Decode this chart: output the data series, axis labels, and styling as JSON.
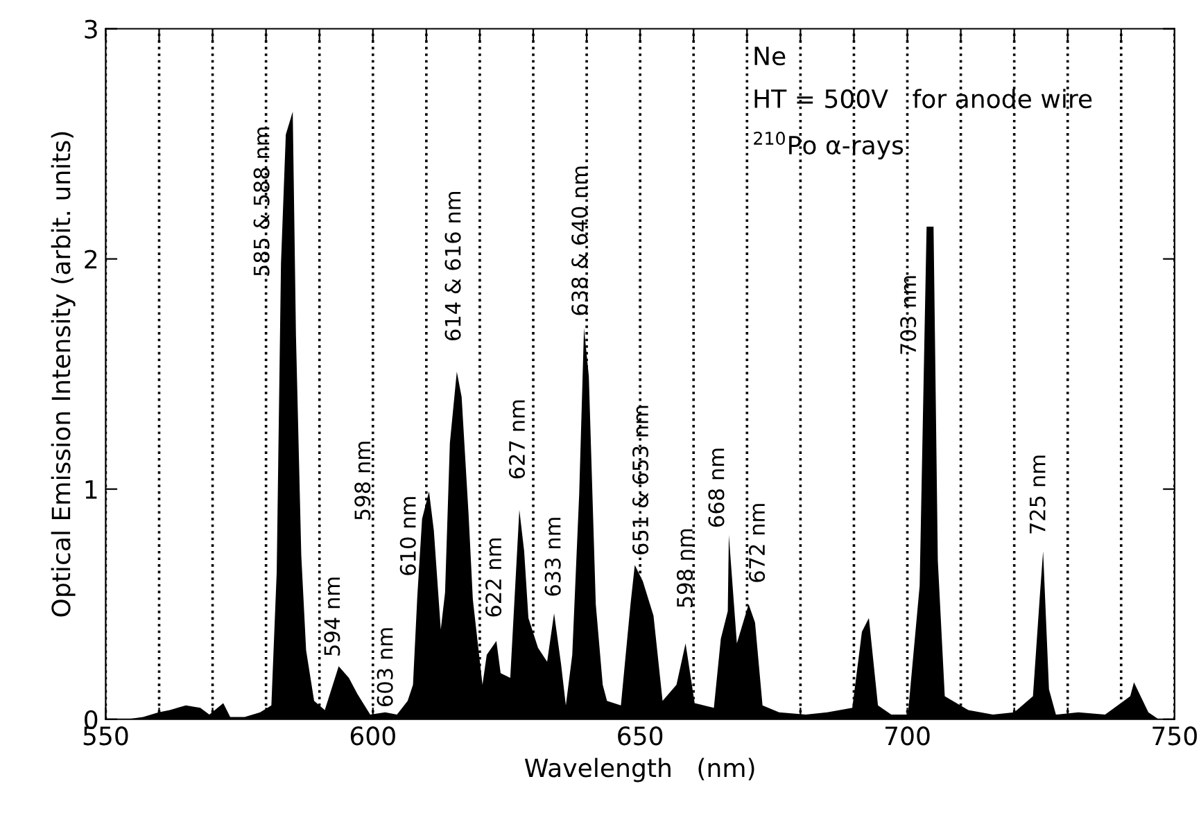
{
  "chart_data": {
    "type": "area",
    "xlabel": "Wavelength   (nm)",
    "ylabel": "Optical Emission Intensity (arbit. units)",
    "series": [
      {
        "color": "#000000",
        "x": [
          554,
          557,
          559.9,
          562,
          565,
          567.7,
          569.4,
          572,
          573.3,
          576,
          578.9,
          581,
          582.0,
          582.8,
          583.7,
          585.0,
          585.6,
          586.6,
          587.5,
          589,
          591,
          593.6,
          595.5,
          597.1,
          599.5,
          602.3,
          604.5,
          606.5,
          607.5,
          608.3,
          609.2,
          610.5,
          611.4,
          612.7,
          613.5,
          614.4,
          615.7,
          616.6,
          617.9,
          618.7,
          620.5,
          621.3,
          623.1,
          623.9,
          625.7,
          627.4,
          628.3,
          629.1,
          630.9,
          632.6,
          633.9,
          635.2,
          636.1,
          637.3,
          638.6,
          639.5,
          640.4,
          641.7,
          643,
          643.8,
          646.4,
          648.2,
          649,
          650.5,
          652.5,
          654.2,
          656.8,
          658.5,
          660.2,
          663.8,
          665.1,
          666.4,
          666.6,
          668.1,
          670.3,
          671.5,
          672.9,
          676,
          681,
          685,
          689.7,
          691.5,
          692.8,
          694.5,
          697,
          700.1,
          702.3,
          703.6,
          704.9,
          705.7,
          707,
          711.4,
          716,
          720,
          723.5,
          724.8,
          725.4,
          726.5,
          727.8,
          732,
          737,
          741.7,
          742.4,
          745.1,
          747
        ],
        "values": [
          0.0,
          0.01,
          0.03,
          0.04,
          0.06,
          0.05,
          0.02,
          0.07,
          0.01,
          0.01,
          0.03,
          0.06,
          0.64,
          1.98,
          2.54,
          2.64,
          1.67,
          0.71,
          0.3,
          0.08,
          0.04,
          0.23,
          0.18,
          0.11,
          0.02,
          0.03,
          0.02,
          0.08,
          0.15,
          0.53,
          0.87,
          0.99,
          0.82,
          0.39,
          0.55,
          1.2,
          1.51,
          1.4,
          0.89,
          0.52,
          0.15,
          0.28,
          0.34,
          0.2,
          0.18,
          0.91,
          0.73,
          0.44,
          0.31,
          0.25,
          0.46,
          0.24,
          0.06,
          0.28,
          0.98,
          1.7,
          1.49,
          0.5,
          0.15,
          0.08,
          0.06,
          0.5,
          0.67,
          0.6,
          0.45,
          0.08,
          0.15,
          0.33,
          0.07,
          0.05,
          0.35,
          0.47,
          0.8,
          0.33,
          0.5,
          0.42,
          0.06,
          0.03,
          0.02,
          0.03,
          0.05,
          0.38,
          0.44,
          0.06,
          0.02,
          0.02,
          0.58,
          2.14,
          2.14,
          0.69,
          0.1,
          0.04,
          0.02,
          0.03,
          0.1,
          0.54,
          0.73,
          0.13,
          0.02,
          0.03,
          0.02,
          0.1,
          0.16,
          0.03,
          0.0
        ]
      }
    ],
    "xlim": [
      550,
      750
    ],
    "ylim": [
      0,
      3
    ],
    "xticks": [
      550,
      {
        "value": 560,
        "label": null
      },
      {
        "value": 570,
        "label": null
      },
      {
        "value": 580,
        "label": null
      },
      {
        "value": 590,
        "label": null
      },
      600,
      {
        "value": 610,
        "label": null
      },
      {
        "value": 620,
        "label": null
      },
      {
        "value": 630,
        "label": null
      },
      {
        "value": 640,
        "label": null
      },
      650,
      {
        "value": 660,
        "label": null
      },
      {
        "value": 670,
        "label": null
      },
      {
        "value": 680,
        "label": null
      },
      {
        "value": 690,
        "label": null
      },
      700,
      {
        "value": 710,
        "label": null
      },
      {
        "value": 720,
        "label": null
      },
      {
        "value": 730,
        "label": null
      },
      {
        "value": 740,
        "label": null
      },
      750
    ],
    "yticks": [
      0,
      1,
      2,
      3
    ],
    "grid": "x",
    "line_style": "dotted",
    "annotations": [
      "585 & 588 nm",
      "594 nm",
      "598 nm",
      "603 nm",
      "610 nm",
      "614 & 616 nm",
      "622 nm",
      "627 nm",
      "633 nm",
      "638 & 640 nm",
      "651 & 653 nm",
      "598 nm",
      "668 nm",
      "672 nm",
      "703 nm",
      "725 nm",
      "Ne",
      "HT = 500V   for anode wire",
      "$^{210}$Po α-rays"
    ]
  }
}
